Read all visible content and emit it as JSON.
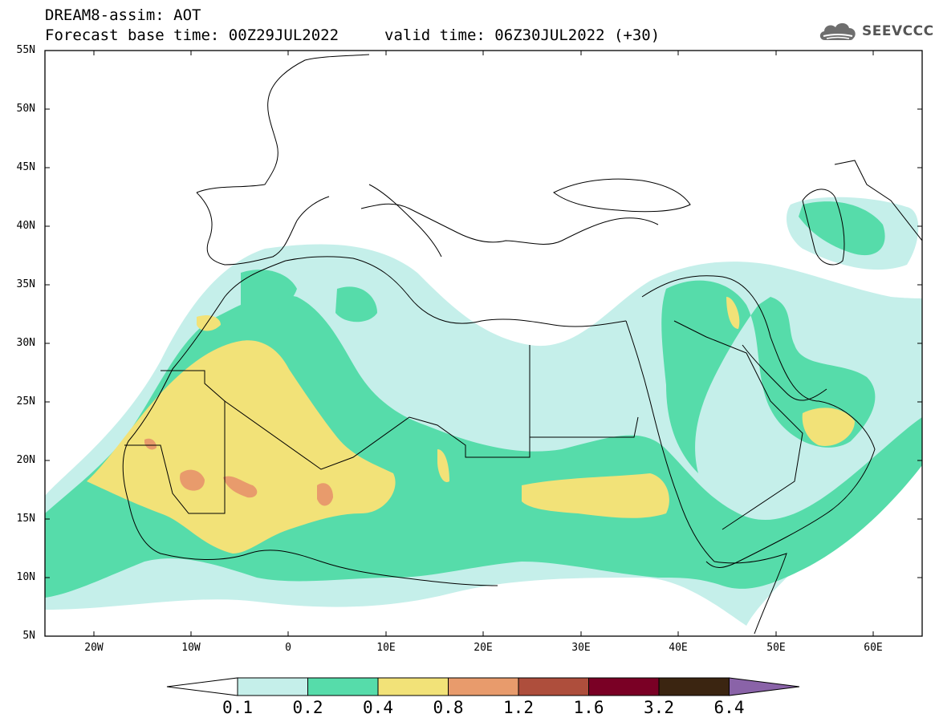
{
  "title_line1": "DREAM8-assim: AOT",
  "title_line2": "Forecast base time: 00Z29JUL2022",
  "valid_time": "valid time: 06Z30JUL2022 (+30)",
  "logo_text": "SEEVCCC",
  "lat_labels": [
    "55N",
    "50N",
    "45N",
    "40N",
    "35N",
    "30N",
    "25N",
    "20N",
    "15N",
    "10N",
    "5N"
  ],
  "lon_labels": [
    "20W",
    "10W",
    "0",
    "10E",
    "20E",
    "30E",
    "40E",
    "50E",
    "60E"
  ],
  "colorbar": {
    "levels": [
      "0.1",
      "0.2",
      "0.4",
      "0.8",
      "1.2",
      "1.6",
      "3.2",
      "6.4"
    ],
    "colors": [
      "#c5efea",
      "#56dcaa",
      "#f2e278",
      "#e89b6c",
      "#ae4e3c",
      "#7a0025",
      "#3b2511"
    ],
    "under_color": "#ffffff",
    "over_color": "#8a63a8"
  }
}
